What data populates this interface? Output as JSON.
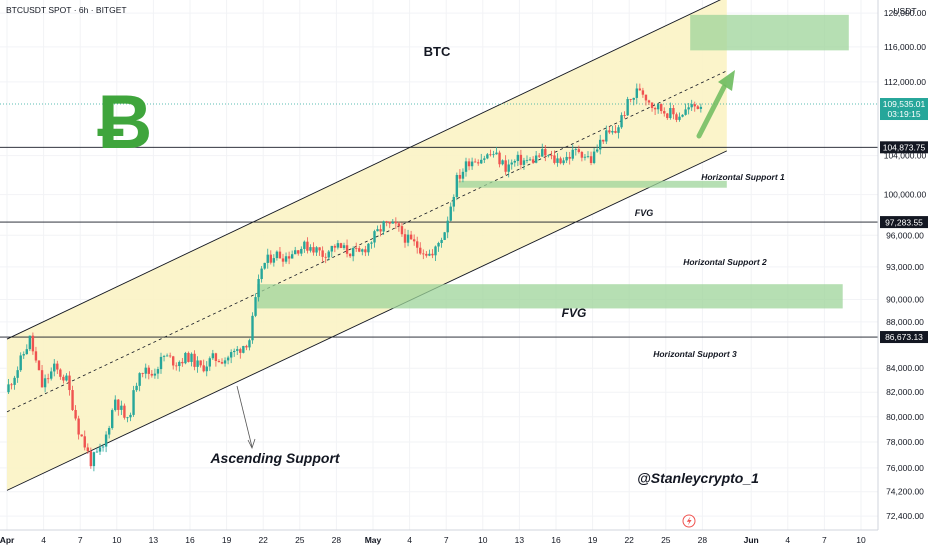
{
  "header": {
    "symbol_line": "BTCUSDT SPOT · 6h · BITGET"
  },
  "price_axis": {
    "currency": "USDT",
    "ticks": [
      {
        "label": "120,000.00",
        "value": 120000
      },
      {
        "label": "116,000.00",
        "value": 116000
      },
      {
        "label": "112,000.00",
        "value": 112000
      },
      {
        "label": "104,000.00",
        "value": 104000
      },
      {
        "label": "100,000.00",
        "value": 100000
      },
      {
        "label": "96,000.00",
        "value": 96000
      },
      {
        "label": "93,000.00",
        "value": 93000
      },
      {
        "label": "90,000.00",
        "value": 90000
      },
      {
        "label": "88,000.00",
        "value": 88000
      },
      {
        "label": "84,000.00",
        "value": 84000
      },
      {
        "label": "82,000.00",
        "value": 82000
      },
      {
        "label": "80,000.00",
        "value": 80000
      },
      {
        "label": "78,000.00",
        "value": 78000
      },
      {
        "label": "76,000.00",
        "value": 76000
      },
      {
        "label": "74,200.00",
        "value": 74200
      },
      {
        "label": "72,400.00",
        "value": 72400
      }
    ],
    "current_price": {
      "price": "109,535.01",
      "countdown": "03:19:15",
      "value": 109535.01,
      "color": "#26a69a"
    },
    "level_badges": [
      {
        "label": "104,873.75",
        "value": 104873.75
      },
      {
        "label": "97,283.55",
        "value": 97283.55
      },
      {
        "label": "86,673.13",
        "value": 86673.13
      }
    ]
  },
  "time_axis": {
    "labels": [
      {
        "label": "Apr",
        "day": 1,
        "bold": true
      },
      {
        "label": "4",
        "day": 4
      },
      {
        "label": "7",
        "day": 7
      },
      {
        "label": "10",
        "day": 10
      },
      {
        "label": "13",
        "day": 13
      },
      {
        "label": "16",
        "day": 16
      },
      {
        "label": "19",
        "day": 19
      },
      {
        "label": "22",
        "day": 22
      },
      {
        "label": "25",
        "day": 25
      },
      {
        "label": "28",
        "day": 28
      },
      {
        "label": "May",
        "day": 31,
        "bold": true
      },
      {
        "label": "4",
        "day": 34
      },
      {
        "label": "7",
        "day": 37
      },
      {
        "label": "10",
        "day": 40
      },
      {
        "label": "13",
        "day": 43
      },
      {
        "label": "16",
        "day": 46
      },
      {
        "label": "19",
        "day": 49
      },
      {
        "label": "22",
        "day": 52
      },
      {
        "label": "25",
        "day": 55
      },
      {
        "label": "28",
        "day": 58
      },
      {
        "label": "Jun",
        "day": 62,
        "bold": true
      },
      {
        "label": "4",
        "day": 65
      },
      {
        "label": "7",
        "day": 68
      },
      {
        "label": "10",
        "day": 71
      }
    ]
  },
  "annotations": {
    "title": "BTC",
    "watermark": "@Stanleycrypto_1",
    "ascending_support": "Ascending Support",
    "fvg_upper": "FVG",
    "fvg_lower": "FVG",
    "support_1": "Horizontal Support 1",
    "support_2": "Horizontal Support 2",
    "support_3": "Horizontal Support 3",
    "logo_glyph": "Ƀ"
  },
  "colors": {
    "up": "#26a69a",
    "down": "#ef5350",
    "channel_fill": "#fbf3c4",
    "zone_fill": "#9dd49a",
    "bitcoin_green": "#3fa53c",
    "arrow_green": "#6dbb5e"
  },
  "chart_data": {
    "type": "candlestick",
    "interval": "6h",
    "day_range": [
      1,
      71
    ],
    "y_range": [
      71400,
      121600
    ],
    "channel": {
      "lower": [
        [
          1,
          74300
        ],
        [
          60,
          104500
        ]
      ],
      "upper": [
        [
          1,
          86500
        ],
        [
          60,
          122000
        ]
      ],
      "mid": [
        [
          1,
          80400
        ],
        [
          60,
          113250
        ]
      ]
    },
    "levels": [
      104873.75,
      97283.55,
      86673.13
    ],
    "zones": [
      {
        "name": "FVG",
        "day_from": 38,
        "day_to": 60,
        "low": 100700,
        "high": 101400
      },
      {
        "name": "FVG",
        "day_from": 21.5,
        "day_to": 69.5,
        "low": 89200,
        "high": 91400
      },
      {
        "name": "target",
        "day_from": 57,
        "day_to": 70,
        "low": 115600,
        "high": 119800
      }
    ],
    "price_path": [
      [
        1,
        82000
      ],
      [
        2,
        84000
      ],
      [
        3,
        86500
      ],
      [
        4,
        82500
      ],
      [
        5,
        84000
      ],
      [
        6,
        83000
      ],
      [
        7,
        79000
      ],
      [
        8,
        76500
      ],
      [
        9,
        77500
      ],
      [
        10,
        81500
      ],
      [
        11,
        79500
      ],
      [
        12,
        84000
      ],
      [
        13,
        83500
      ],
      [
        14,
        85000
      ],
      [
        15,
        84500
      ],
      [
        16,
        85000
      ],
      [
        17,
        84000
      ],
      [
        18,
        84800
      ],
      [
        19,
        84800
      ],
      [
        20,
        85500
      ],
      [
        21,
        86500
      ],
      [
        22,
        93000
      ],
      [
        23,
        94200
      ],
      [
        24,
        94000
      ],
      [
        25,
        94800
      ],
      [
        26,
        95000
      ],
      [
        27,
        94200
      ],
      [
        28,
        95000
      ],
      [
        29,
        94500
      ],
      [
        30,
        94200
      ],
      [
        31,
        95500
      ],
      [
        32,
        97000
      ],
      [
        33,
        96800
      ],
      [
        34,
        95500
      ],
      [
        35,
        94800
      ],
      [
        36,
        94000
      ],
      [
        37,
        96500
      ],
      [
        38,
        101500
      ],
      [
        39,
        103500
      ],
      [
        40,
        103800
      ],
      [
        41,
        104200
      ],
      [
        42,
        102800
      ],
      [
        43,
        103500
      ],
      [
        44,
        103400
      ],
      [
        45,
        104200
      ],
      [
        46,
        103500
      ],
      [
        47,
        103800
      ],
      [
        48,
        104600
      ],
      [
        49,
        103500
      ],
      [
        50,
        106000
      ],
      [
        51,
        106500
      ],
      [
        52,
        109500
      ],
      [
        53,
        111300
      ],
      [
        54,
        109500
      ],
      [
        55,
        108800
      ],
      [
        56,
        108200
      ],
      [
        57,
        109000
      ],
      [
        58,
        109535
      ]
    ]
  }
}
